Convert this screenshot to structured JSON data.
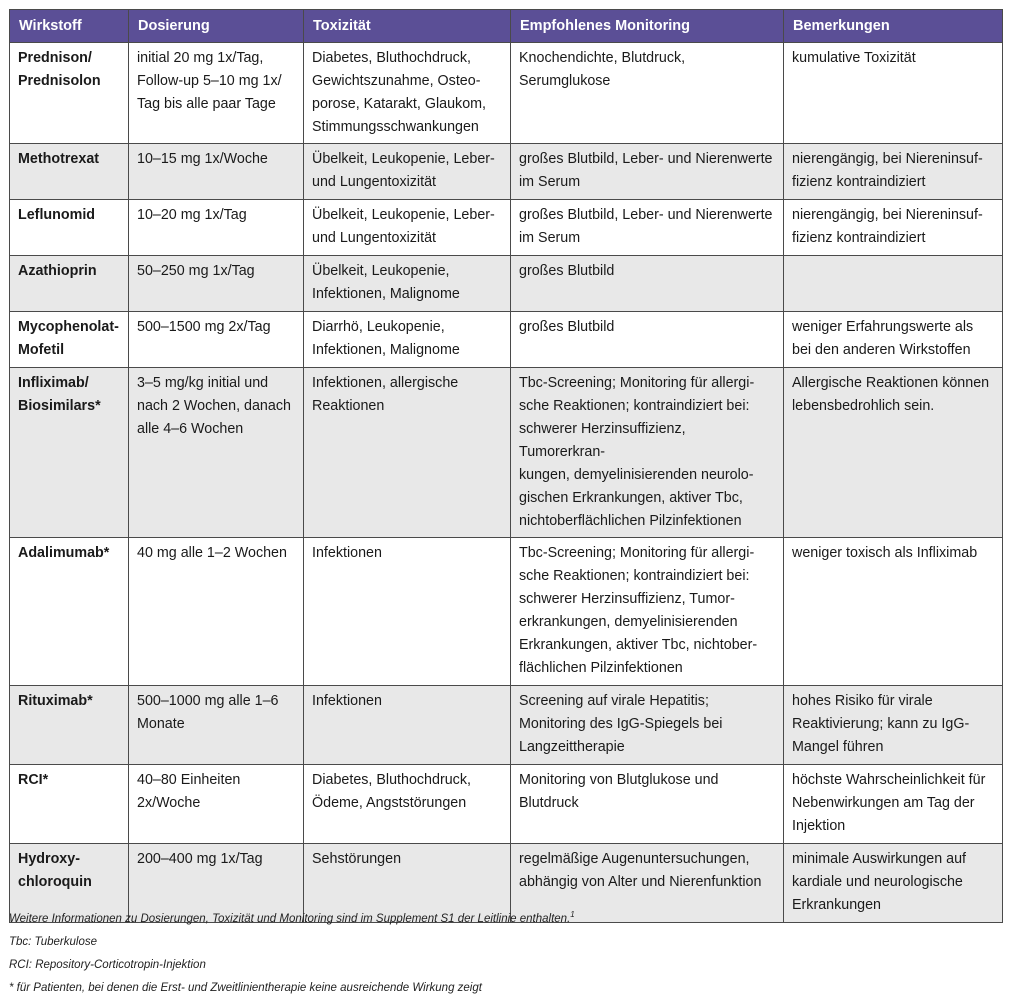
{
  "table": {
    "headers": [
      "Wirkstoff",
      "Dosierung",
      "Toxizität",
      "Empfohlenes Monitoring",
      "Bemerkungen"
    ],
    "rows": [
      {
        "name": "Prednison/\nPrednisolon",
        "dose": "initial 20 mg 1x/Tag, Follow-up 5–10 mg 1x/Tag bis alle paar Tage",
        "tox": "Diabetes, Bluthochdruck, Gewichtszunahme, Osteoporose, Katarakt, Glaukom, Stimmungsschwankungen",
        "mon": "Knochendichte, Blutdruck, Serumglukose",
        "note": "kumulative Toxizität"
      },
      {
        "name": "Methotrexat",
        "dose": "10–15 mg 1x/Woche",
        "tox": "Übelkeit, Leukopenie, Leber- und Lungentoxizität",
        "mon": "großes Blutbild, Leber- und Nierenwerte im Serum",
        "note": "nierengängig, bei Niereninsuffizienz kontraindiziert"
      },
      {
        "name": "Leflunomid",
        "dose": "10–20 mg 1x/Tag",
        "tox": "Übelkeit, Leukopenie, Leber- und Lungentoxizität",
        "mon": "großes Blutbild, Leber- und Nierenwerte im Serum",
        "note": "nierengängig, bei Niereninsuffizienz kontraindiziert"
      },
      {
        "name": "Azathioprin",
        "dose": "50–250 mg 1x/Tag",
        "tox": "Übelkeit, Leukopenie, Infektionen, Malignome",
        "mon": "großes Blutbild",
        "note": ""
      },
      {
        "name": "Mycophenolat-\nMofetil",
        "dose": "500–1500 mg 2x/Tag",
        "tox": "Diarrhö, Leukopenie, Infektionen, Malignome",
        "mon": "großes Blutbild",
        "note": "weniger Erfahrungswerte als bei den anderen Wirkstoffen"
      },
      {
        "name": "Infliximab/\nBiosimilars*",
        "dose": "3–5 mg/kg initial und nach 2 Wochen, danach alle 4–6 Wochen",
        "tox": "Infektionen, allergische Reaktionen",
        "mon": "Tbc-Screening; Monitoring für allergische Reaktionen; kontraindiziert bei: schwerer Herzinsuffizienz, Tumorerkrankungen, demyelinisierenden neurologischen Erkrankungen, aktiver Tbc, nichtoberflächlichen Pilzinfektionen",
        "note": "Allergische Reaktionen können lebensbedrohlich sein."
      },
      {
        "name": "Adalimumab*",
        "dose": "40 mg alle 1–2 Wochen",
        "tox": "Infektionen",
        "mon": "Tbc-Screening; Monitoring für allergische Reaktionen; kontraindiziert bei: schwerer Herzinsuffizienz, Tumorerkrankungen, demyelinisierenden Erkrankungen, aktiver Tbc, nichtoberflächlichen Pilzinfektionen",
        "note": "weniger toxisch als Infliximab"
      },
      {
        "name": "Rituximab*",
        "dose": "500–1000 mg alle 1–6 Monate",
        "tox": "Infektionen",
        "mon": "Screening auf virale Hepatitis; Monitoring des IgG-Spiegels bei Langzeittherapie",
        "note": "hohes Risiko für virale Reaktivierung; kann zu IgG-Mangel führen"
      },
      {
        "name": "RCI*",
        "dose": "40–80 Einheiten 2x/Woche",
        "tox": "Diabetes, Bluthochdruck, Ödeme, Angststörungen",
        "mon": "Monitoring von Blutglukose und Blutdruck",
        "note": "höchste Wahrscheinlichkeit für Nebenwirkungen am Tag der Injektion"
      },
      {
        "name": "Hydroxy-\nchloroquin",
        "dose": "200–400 mg 1x/Tag",
        "tox": "Sehstörungen",
        "mon": "regelmäßige Augenuntersuchungen, abhängig von Alter und Nierenfunktion",
        "note": "minimale Auswirkungen auf kardiale und neurologische Erkrankungen"
      }
    ]
  },
  "footnotes": {
    "line1": "Weitere Informationen zu Dosierungen, Toxizität und Monitoring sind im Supplement S1 der Leitlinie enthalten.",
    "line1_sup": "1",
    "line2": "Tbc: Tuberkulose",
    "line3": "RCI: Repository-Corticotropin-Injektion",
    "line4": "* für Patienten, bei denen die Erst- und Zweitlinientherapie keine ausreichende Wirkung zeigt"
  }
}
